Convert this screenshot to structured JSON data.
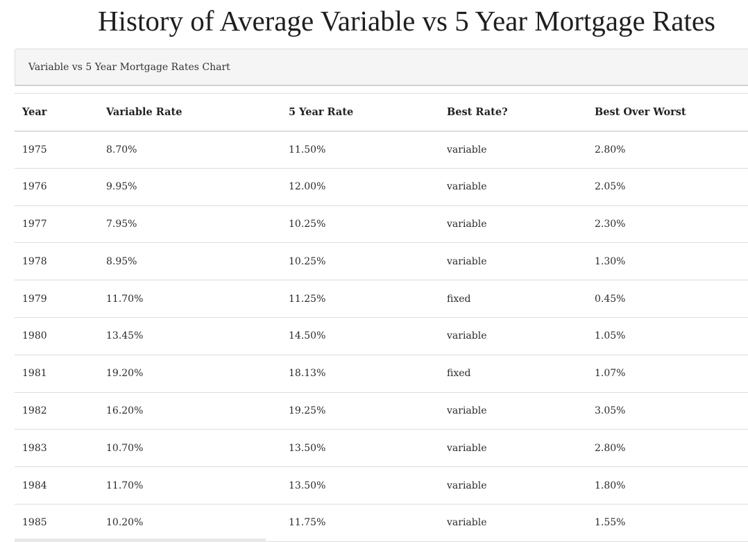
{
  "page": {
    "title": "History of Average Variable vs 5 Year Mortgage Rates"
  },
  "panel": {
    "heading": "Variable vs 5 Year Mortgage Rates Chart"
  },
  "chart_data": {
    "type": "table",
    "title": "Variable vs 5 Year Mortgage Rates Chart",
    "columns": [
      "Year",
      "Variable Rate",
      "5 Year Rate",
      "Best Rate?",
      "Best Over Worst"
    ],
    "rows": [
      [
        "1975",
        "8.70%",
        "11.50%",
        "variable",
        "2.80%"
      ],
      [
        "1976",
        "9.95%",
        "12.00%",
        "variable",
        "2.05%"
      ],
      [
        "1977",
        "7.95%",
        "10.25%",
        "variable",
        "2.30%"
      ],
      [
        "1978",
        "8.95%",
        "10.25%",
        "variable",
        "1.30%"
      ],
      [
        "1979",
        "11.70%",
        "11.25%",
        "fixed",
        "0.45%"
      ],
      [
        "1980",
        "13.45%",
        "14.50%",
        "variable",
        "1.05%"
      ],
      [
        "1981",
        "19.20%",
        "18.13%",
        "fixed",
        "1.07%"
      ],
      [
        "1982",
        "16.20%",
        "19.25%",
        "variable",
        "3.05%"
      ],
      [
        "1983",
        "10.70%",
        "13.50%",
        "variable",
        "2.80%"
      ],
      [
        "1984",
        "11.70%",
        "13.50%",
        "variable",
        "1.80%"
      ],
      [
        "1985",
        "10.20%",
        "11.75%",
        "variable",
        "1.55%"
      ]
    ]
  }
}
